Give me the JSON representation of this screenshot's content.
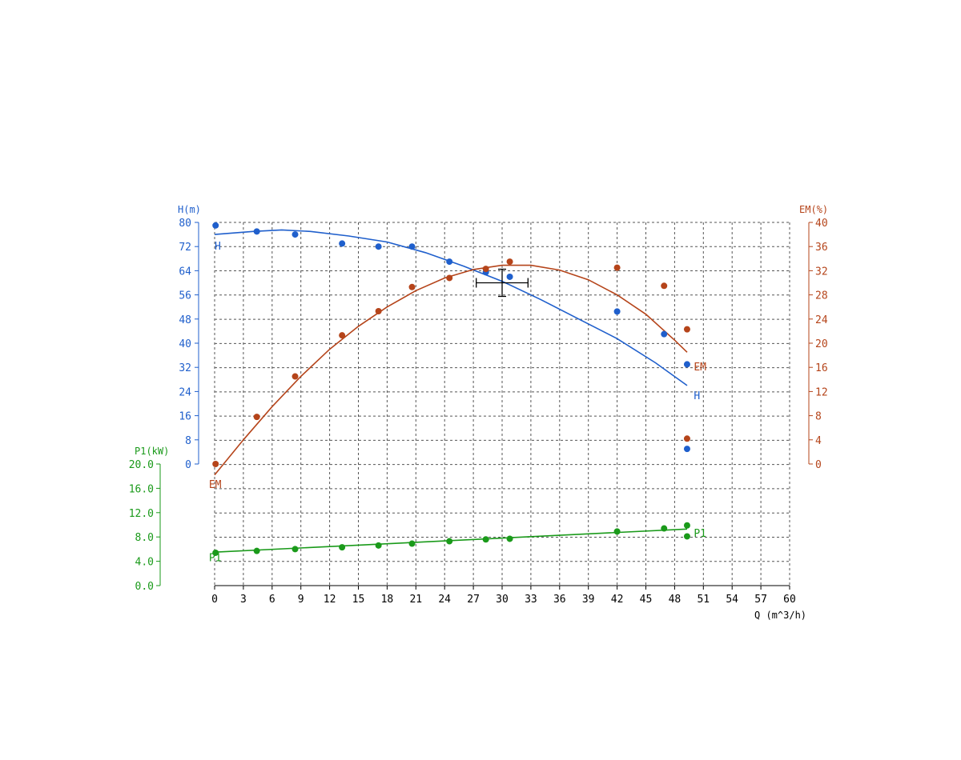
{
  "chart_data": {
    "type": "scatter",
    "x_axis": {
      "label": "Q (m^3/h)",
      "ticks": [
        "0",
        "3",
        "6",
        "9",
        "12",
        "15",
        "18",
        "21",
        "24",
        "27",
        "30",
        "33",
        "36",
        "39",
        "42",
        "45",
        "48",
        "51",
        "54",
        "57",
        "60"
      ],
      "range": [
        0,
        60
      ]
    },
    "y_axes": {
      "H": {
        "label": "H(m)",
        "ticks": [
          "0",
          "8",
          "16",
          "24",
          "32",
          "40",
          "48",
          "56",
          "64",
          "72",
          "80"
        ],
        "range": [
          0,
          80
        ],
        "color": "#1f5fcc"
      },
      "EM": {
        "label": "EM(%)",
        "ticks": [
          "0",
          "4",
          "8",
          "12",
          "16",
          "20",
          "24",
          "28",
          "32",
          "36",
          "40"
        ],
        "range": [
          0,
          40
        ],
        "color": "#b5441a"
      },
      "P1": {
        "label": "P1(kW)",
        "ticks": [
          "0.0",
          "4.0",
          "8.0",
          "12.0",
          "16.0",
          "20.0"
        ],
        "range": [
          0,
          20
        ],
        "color": "#1a9a1a"
      }
    },
    "grid": true,
    "series": [
      {
        "name": "H",
        "axis": "H",
        "color": "#1f5fcc",
        "points": [
          [
            0.1,
            79
          ],
          [
            4.4,
            77
          ],
          [
            8.4,
            76
          ],
          [
            13.3,
            73
          ],
          [
            17.1,
            72
          ],
          [
            20.6,
            72
          ],
          [
            24.5,
            67
          ],
          [
            28.3,
            63.5
          ],
          [
            30.8,
            62
          ],
          [
            42.0,
            50.5
          ],
          [
            46.9,
            43
          ],
          [
            49.3,
            33
          ],
          [
            49.3,
            5
          ]
        ],
        "fit": [
          [
            0,
            76
          ],
          [
            4,
            77
          ],
          [
            7,
            77.5
          ],
          [
            10,
            77
          ],
          [
            14,
            75.5
          ],
          [
            18,
            73.5
          ],
          [
            22,
            70
          ],
          [
            26,
            65.5
          ],
          [
            30,
            60.5
          ],
          [
            34,
            54.5
          ],
          [
            38,
            48
          ],
          [
            42,
            41.5
          ],
          [
            46,
            33.5
          ],
          [
            49.3,
            26
          ]
        ],
        "labels": [
          {
            "text": "H",
            "x": 0,
            "y": 71
          },
          {
            "text": "H",
            "x": 50,
            "y": 21.5
          }
        ]
      },
      {
        "name": "EM",
        "axis": "EM",
        "color": "#b5441a",
        "points": [
          [
            0.1,
            0
          ],
          [
            4.4,
            7.8
          ],
          [
            8.4,
            14.5
          ],
          [
            13.3,
            21.3
          ],
          [
            17.1,
            25.3
          ],
          [
            20.6,
            29.3
          ],
          [
            24.5,
            30.8
          ],
          [
            28.3,
            32.3
          ],
          [
            30.8,
            33.5
          ],
          [
            42.0,
            32.5
          ],
          [
            46.9,
            29.5
          ],
          [
            49.3,
            22.3
          ],
          [
            49.3,
            4.2
          ]
        ],
        "fit": [
          [
            0,
            -1.8
          ],
          [
            3,
            4
          ],
          [
            6,
            9.5
          ],
          [
            9,
            14.5
          ],
          [
            12,
            19
          ],
          [
            15,
            22.8
          ],
          [
            18,
            26
          ],
          [
            21,
            28.7
          ],
          [
            24,
            30.8
          ],
          [
            27,
            32.2
          ],
          [
            30,
            32.9
          ],
          [
            33,
            32.9
          ],
          [
            36,
            32.1
          ],
          [
            39,
            30.5
          ],
          [
            42,
            28
          ],
          [
            45,
            24.8
          ],
          [
            48,
            20.5
          ],
          [
            49.3,
            18.5
          ]
        ],
        "labels": [
          {
            "text": "EM",
            "x": -0.6,
            "y": -4
          },
          {
            "text": "EM",
            "x": 50,
            "y": 15.5
          }
        ]
      },
      {
        "name": "P1",
        "axis": "P1",
        "color": "#1a9a1a",
        "points": [
          [
            0.1,
            5.4
          ],
          [
            4.4,
            5.7
          ],
          [
            8.4,
            6.0
          ],
          [
            13.3,
            6.3
          ],
          [
            17.1,
            6.6
          ],
          [
            20.6,
            6.9
          ],
          [
            24.5,
            7.3
          ],
          [
            28.3,
            7.6
          ],
          [
            30.8,
            7.7
          ],
          [
            42.0,
            8.9
          ],
          [
            46.9,
            9.4
          ],
          [
            49.3,
            9.9
          ],
          [
            49.3,
            8.1
          ]
        ],
        "fit": [
          [
            0,
            5.5
          ],
          [
            49.3,
            9.3
          ]
        ],
        "labels": [
          {
            "text": "P1",
            "x": -0.6,
            "y": 4.0
          },
          {
            "text": "P1",
            "x": 50,
            "y": 8.0
          }
        ]
      }
    ],
    "duty_point": {
      "x": 30,
      "y_H": 60,
      "x_err": 2.7,
      "y_err": 4.5
    }
  }
}
